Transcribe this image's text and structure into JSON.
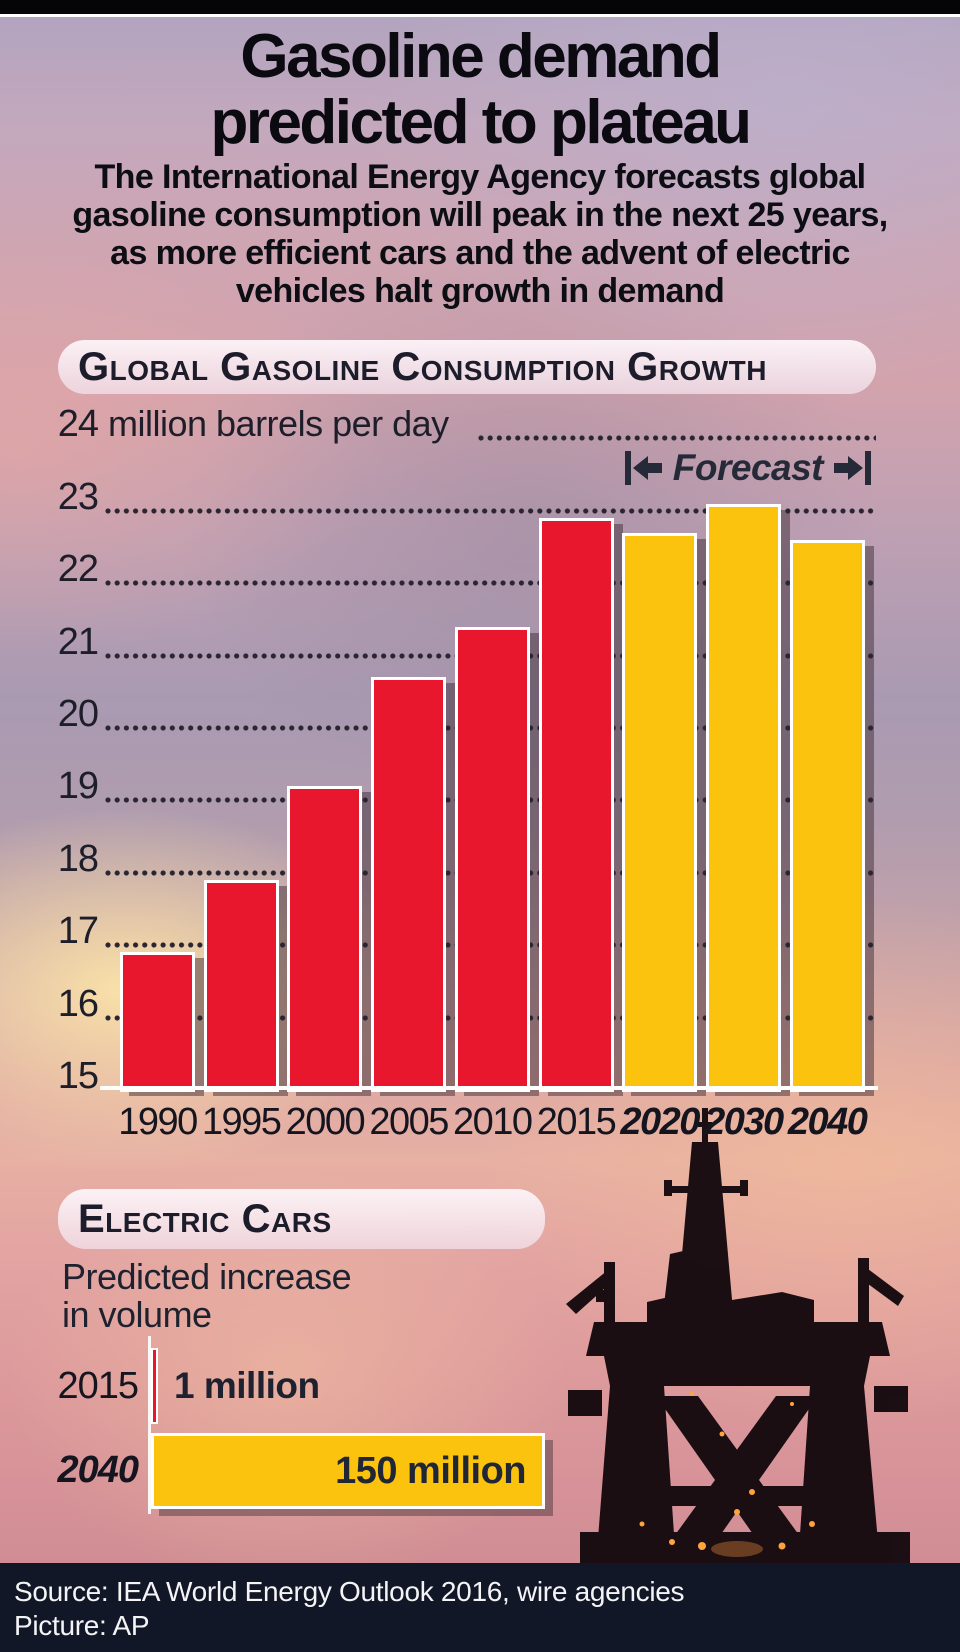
{
  "poster": {
    "title_line1": "Gasoline demand",
    "title_line2": "predicted to plateau",
    "subtitle_lines": [
      "The International Energy Agency forecasts global",
      "gasoline consumption will peak in the next 25 years,",
      "as more efficient cars and the advent of electric",
      "vehicles halt growth in demand"
    ]
  },
  "chart_data": [
    {
      "type": "bar",
      "title": "Global Gasoline Consumption Growth",
      "unit_label": "million barrels per day",
      "categories": [
        "1990",
        "1995",
        "2000",
        "2005",
        "2010",
        "2015",
        "2020",
        "2030",
        "2040"
      ],
      "values": [
        16.9,
        17.9,
        19.2,
        20.7,
        21.4,
        22.9,
        22.7,
        23.1,
        22.6
      ],
      "forecast_from_index": 6,
      "forecast_label": "Forecast",
      "ylim": [
        15,
        24
      ],
      "ytick_step": 1,
      "grid": "dotted horizontal lines",
      "legend_position": "none",
      "color_actual": "#e8172e",
      "color_forecast": "#fcc30e"
    },
    {
      "type": "bar",
      "orientation": "horizontal",
      "title": "Electric Cars",
      "subtitle_lines": [
        "Predicted increase",
        "in volume"
      ],
      "categories": [
        "2015",
        "2040"
      ],
      "values": [
        1,
        150
      ],
      "value_labels": [
        "1 million",
        "150 million"
      ],
      "bar_colors": [
        "#e8172e",
        "#fcc30e"
      ],
      "xlim": [
        0,
        150
      ],
      "grid": "off"
    }
  ],
  "footer": {
    "source": "Source: IEA World Energy Outlook 2016, wire agencies",
    "picture": "Picture: AP"
  },
  "colors": {
    "actual_red": "#e8172e",
    "forecast_yellow": "#fcc30e",
    "ink": "#1c1c2b",
    "footer_bg": "#121728"
  }
}
